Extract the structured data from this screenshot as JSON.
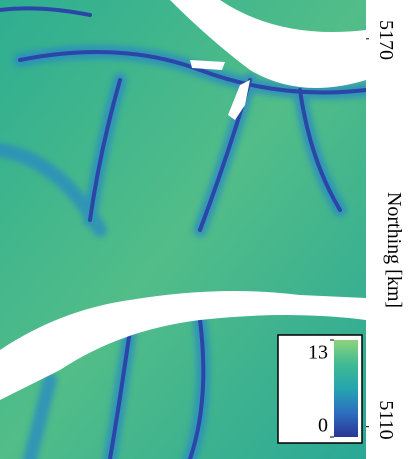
{
  "chart_data": {
    "type": "raster",
    "y_label": "Northing [km]",
    "ylim": [
      5105,
      5176
    ],
    "yticks": [
      5170,
      5110
    ],
    "clim": [
      0,
      13
    ],
    "cticks": [
      0,
      13
    ],
    "colormap": [
      "#2b3596",
      "#2d6fc0",
      "#25a5ae",
      "#3fbb93",
      "#8dd37d"
    ]
  }
}
